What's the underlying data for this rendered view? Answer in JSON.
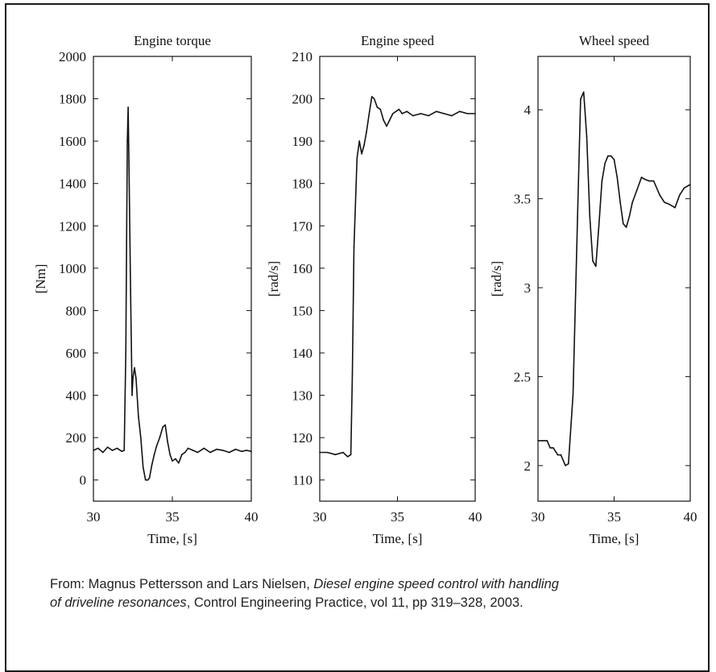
{
  "chart_data": [
    {
      "type": "line",
      "title": "Engine torque",
      "xlabel": "Time, [s]",
      "ylabel": "[Nm]",
      "xlim": [
        30,
        40
      ],
      "ylim": [
        -100,
        2000
      ],
      "xticks": [
        30,
        35,
        40
      ],
      "yticks": [
        0,
        200,
        400,
        600,
        800,
        1000,
        1200,
        1400,
        1600,
        1800,
        2000
      ],
      "grid": false,
      "series": [
        {
          "x": [
            30.0,
            30.3,
            30.6,
            30.9,
            31.2,
            31.5,
            31.8,
            31.95,
            32.05,
            32.15,
            32.2,
            32.25,
            32.35,
            32.45,
            32.5,
            32.6,
            32.7,
            32.85,
            33.0,
            33.15,
            33.3,
            33.45,
            33.55,
            33.7,
            33.85,
            34.0,
            34.2,
            34.4,
            34.55,
            34.7,
            34.85,
            35.0,
            35.2,
            35.4,
            35.6,
            35.8,
            36.0,
            36.3,
            36.6,
            37.0,
            37.4,
            37.8,
            38.2,
            38.6,
            39.0,
            39.4,
            39.7,
            40.0
          ],
          "y": [
            140,
            150,
            130,
            155,
            140,
            150,
            135,
            140,
            600,
            1600,
            1760,
            1500,
            900,
            400,
            480,
            530,
            480,
            300,
            200,
            60,
            0,
            0,
            10,
            70,
            120,
            160,
            200,
            250,
            260,
            180,
            120,
            90,
            100,
            80,
            120,
            130,
            150,
            140,
            130,
            150,
            130,
            145,
            140,
            130,
            145,
            135,
            140,
            135
          ]
        }
      ]
    },
    {
      "type": "line",
      "title": "Engine speed",
      "xlabel": "Time, [s]",
      "ylabel": "[rad/s]",
      "xlim": [
        30,
        40
      ],
      "ylim": [
        105,
        210
      ],
      "xticks": [
        30,
        35,
        40
      ],
      "yticks": [
        110,
        120,
        130,
        140,
        150,
        160,
        170,
        180,
        190,
        200,
        210
      ],
      "grid": false,
      "series": [
        {
          "x": [
            30.0,
            30.5,
            31.0,
            31.5,
            31.8,
            32.0,
            32.1,
            32.2,
            32.4,
            32.55,
            32.7,
            32.85,
            33.0,
            33.2,
            33.35,
            33.5,
            33.7,
            33.9,
            34.1,
            34.3,
            34.5,
            34.7,
            34.9,
            35.1,
            35.3,
            35.6,
            36.0,
            36.5,
            37.0,
            37.5,
            38.0,
            38.5,
            39.0,
            39.5,
            40.0
          ],
          "y": [
            116.5,
            116.5,
            116.0,
            116.5,
            115.5,
            116.0,
            135.0,
            165.0,
            186.0,
            190.0,
            187.0,
            189.0,
            192.0,
            197.0,
            200.5,
            200.0,
            198.0,
            197.5,
            195.0,
            193.5,
            195.0,
            196.5,
            197.0,
            197.5,
            196.5,
            197.0,
            196.0,
            196.5,
            196.0,
            197.0,
            196.5,
            196.0,
            197.0,
            196.5,
            196.5
          ]
        }
      ]
    },
    {
      "type": "line",
      "title": "Wheel speed",
      "xlabel": "Time, [s]",
      "ylabel": "[rad/s]",
      "xlim": [
        30,
        40
      ],
      "ylim": [
        1.8,
        4.3
      ],
      "xticks": [
        30,
        35,
        40
      ],
      "yticks": [
        2,
        2.5,
        3,
        3.5,
        4
      ],
      "grid": false,
      "series": [
        {
          "x": [
            30.0,
            30.3,
            30.6,
            30.8,
            31.0,
            31.3,
            31.5,
            31.8,
            32.0,
            32.3,
            32.6,
            32.8,
            33.0,
            33.2,
            33.4,
            33.6,
            33.8,
            34.0,
            34.2,
            34.4,
            34.6,
            34.8,
            35.0,
            35.2,
            35.4,
            35.6,
            35.8,
            36.0,
            36.2,
            36.5,
            36.8,
            37.0,
            37.3,
            37.6,
            38.0,
            38.3,
            38.6,
            39.0,
            39.3,
            39.6,
            40.0
          ],
          "y": [
            2.14,
            2.14,
            2.14,
            2.1,
            2.1,
            2.06,
            2.06,
            2.0,
            2.01,
            2.4,
            3.4,
            4.06,
            4.1,
            3.85,
            3.4,
            3.15,
            3.12,
            3.35,
            3.6,
            3.7,
            3.74,
            3.74,
            3.72,
            3.62,
            3.48,
            3.36,
            3.34,
            3.4,
            3.48,
            3.55,
            3.62,
            3.61,
            3.6,
            3.6,
            3.52,
            3.48,
            3.47,
            3.45,
            3.52,
            3.56,
            3.58
          ]
        }
      ]
    }
  ],
  "caption": {
    "prefix": "From: Magnus Pettersson and Lars Nielsen, ",
    "title_italic_line1": "Diesel engine speed control with handling",
    "title_italic_line2": "of driveline resonances",
    "suffix": ", Control Engineering Practice, vol 11,  pp 319–328,  2003."
  }
}
